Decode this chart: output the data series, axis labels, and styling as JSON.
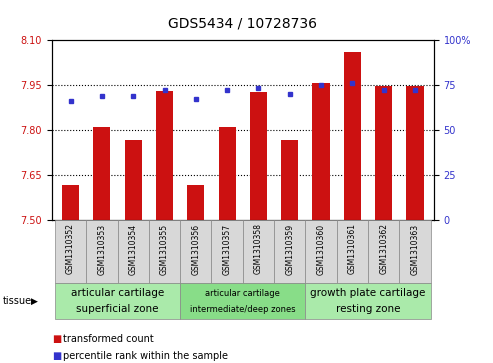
{
  "title": "GDS5434 / 10728736",
  "samples": [
    "GSM1310352",
    "GSM1310353",
    "GSM1310354",
    "GSM1310355",
    "GSM1310356",
    "GSM1310357",
    "GSM1310358",
    "GSM1310359",
    "GSM1310360",
    "GSM1310361",
    "GSM1310362",
    "GSM1310363"
  ],
  "bar_values": [
    7.615,
    7.81,
    7.765,
    7.93,
    7.615,
    7.81,
    7.925,
    7.765,
    7.955,
    8.06,
    7.945,
    7.945
  ],
  "percentile_values": [
    66,
    69,
    69,
    72,
    67,
    72,
    73,
    70,
    75,
    76,
    72,
    72
  ],
  "ylim_left": [
    7.5,
    8.1
  ],
  "ylim_right": [
    0,
    100
  ],
  "yticks_left": [
    7.5,
    7.65,
    7.8,
    7.95,
    8.1
  ],
  "yticks_right": [
    0,
    25,
    50,
    75,
    100
  ],
  "bar_color": "#cc1111",
  "dot_color": "#3333cc",
  "bar_bottom": 7.5,
  "groups": [
    {
      "label_line1": "articular cartilage",
      "label_line2": "superficial zone",
      "start": 0,
      "end": 4,
      "color": "#aaeaaa",
      "fontsize_l1": 7.5,
      "fontsize_l2": 7.5
    },
    {
      "label_line1": "articular cartilage",
      "label_line2": "intermediate/deep zones",
      "start": 4,
      "end": 8,
      "color": "#88dd88",
      "fontsize_l1": 6,
      "fontsize_l2": 6
    },
    {
      "label_line1": "growth plate cartilage",
      "label_line2": "resting zone",
      "start": 8,
      "end": 12,
      "color": "#aaeaaa",
      "fontsize_l1": 7.5,
      "fontsize_l2": 7.5
    }
  ],
  "legend_items": [
    {
      "label": "transformed count",
      "color": "#cc1111"
    },
    {
      "label": "percentile rank within the sample",
      "color": "#3333cc"
    }
  ],
  "tissue_label": "tissue",
  "bg_color": "#d8d8d8",
  "title_fontsize": 10,
  "tick_fontsize": 7,
  "sample_fontsize": 5.5,
  "ylabel_left_color": "#cc1111",
  "ylabel_right_color": "#3333cc"
}
